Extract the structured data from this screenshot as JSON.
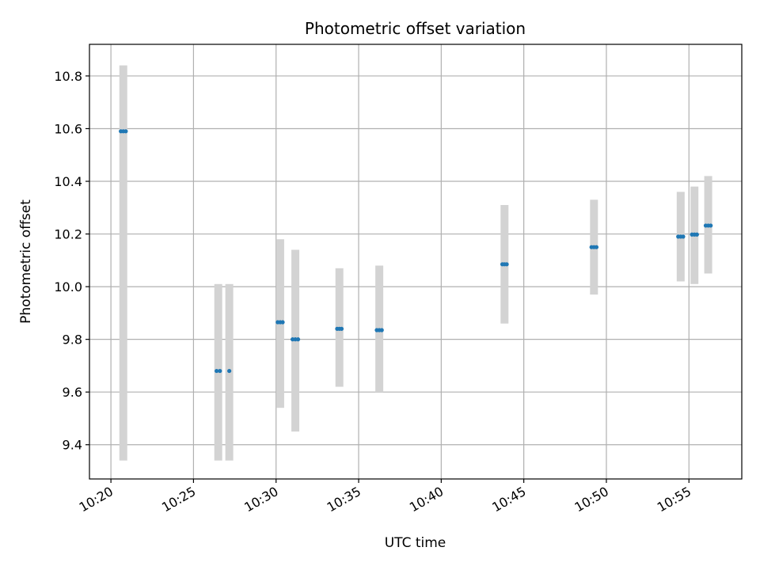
{
  "chart_data": {
    "type": "scatter",
    "title": "Photometric offset variation",
    "xlabel": "UTC time",
    "ylabel": "Photometric offset",
    "x_tick_labels": [
      "10:20",
      "10:25",
      "10:30",
      "10:35",
      "10:40",
      "10:45",
      "10:50",
      "10:55"
    ],
    "x_ticks_minutes": [
      20,
      25,
      30,
      35,
      40,
      45,
      50,
      55
    ],
    "xlim_minutes": [
      18.7,
      58.2
    ],
    "ylim": [
      9.27,
      10.92
    ],
    "y_ticks": [
      9.4,
      9.6,
      9.8,
      10.0,
      10.2,
      10.4,
      10.6,
      10.8
    ],
    "grid": true,
    "colors": {
      "points": "#1f77b4",
      "error_bars": "#d3d3d3",
      "grid": "#b0b0b0"
    },
    "error_bars": [
      {
        "time": "10:20:45",
        "low": 9.34,
        "high": 10.84
      },
      {
        "time": "10:26:30",
        "low": 9.34,
        "high": 10.01
      },
      {
        "time": "10:27:10",
        "low": 9.34,
        "high": 10.01
      },
      {
        "time": "10:30:15",
        "low": 9.54,
        "high": 10.18
      },
      {
        "time": "10:31:10",
        "low": 9.45,
        "high": 10.14
      },
      {
        "time": "10:33:50",
        "low": 9.62,
        "high": 10.07
      },
      {
        "time": "10:36:15",
        "low": 9.6,
        "high": 10.08
      },
      {
        "time": "10:43:50",
        "low": 9.86,
        "high": 10.31
      },
      {
        "time": "10:49:15",
        "low": 9.97,
        "high": 10.33
      },
      {
        "time": "10:54:30",
        "low": 10.02,
        "high": 10.36
      },
      {
        "time": "10:55:20",
        "low": 10.01,
        "high": 10.38
      },
      {
        "time": "10:56:10",
        "low": 10.05,
        "high": 10.42
      }
    ],
    "points": [
      {
        "time": "10:20:36",
        "y": 10.59
      },
      {
        "time": "10:20:45",
        "y": 10.59
      },
      {
        "time": "10:20:54",
        "y": 10.59
      },
      {
        "time": "10:26:24",
        "y": 9.68
      },
      {
        "time": "10:26:36",
        "y": 9.68
      },
      {
        "time": "10:27:10",
        "y": 9.68
      },
      {
        "time": "10:30:06",
        "y": 9.865
      },
      {
        "time": "10:30:15",
        "y": 9.865
      },
      {
        "time": "10:30:24",
        "y": 9.865
      },
      {
        "time": "10:31:00",
        "y": 9.8
      },
      {
        "time": "10:31:10",
        "y": 9.8
      },
      {
        "time": "10:31:20",
        "y": 9.8
      },
      {
        "time": "10:33:42",
        "y": 9.84
      },
      {
        "time": "10:33:50",
        "y": 9.84
      },
      {
        "time": "10:33:58",
        "y": 9.84
      },
      {
        "time": "10:36:06",
        "y": 9.835
      },
      {
        "time": "10:36:15",
        "y": 9.835
      },
      {
        "time": "10:36:24",
        "y": 9.835
      },
      {
        "time": "10:43:42",
        "y": 10.085
      },
      {
        "time": "10:43:50",
        "y": 10.085
      },
      {
        "time": "10:43:58",
        "y": 10.085
      },
      {
        "time": "10:49:06",
        "y": 10.15
      },
      {
        "time": "10:49:15",
        "y": 10.15
      },
      {
        "time": "10:49:24",
        "y": 10.15
      },
      {
        "time": "10:54:21",
        "y": 10.19
      },
      {
        "time": "10:54:30",
        "y": 10.19
      },
      {
        "time": "10:54:39",
        "y": 10.19
      },
      {
        "time": "10:55:11",
        "y": 10.198
      },
      {
        "time": "10:55:20",
        "y": 10.198
      },
      {
        "time": "10:55:29",
        "y": 10.198
      },
      {
        "time": "10:56:01",
        "y": 10.232
      },
      {
        "time": "10:56:10",
        "y": 10.232
      },
      {
        "time": "10:56:19",
        "y": 10.232
      }
    ]
  }
}
